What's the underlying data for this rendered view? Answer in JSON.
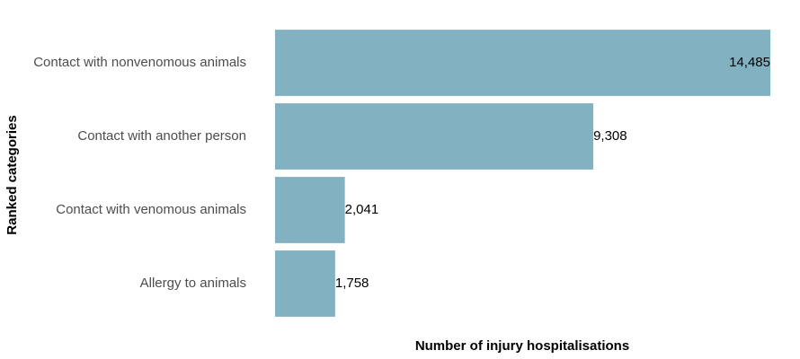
{
  "chart_data": {
    "type": "hbar",
    "x_label": "Number of injury hospitalisations",
    "y_label": "Ranked categories",
    "categories": [
      "Contact with nonvenomous animals",
      "Contact with another person",
      "Contact with venomous animals",
      "Allergy to animals"
    ],
    "values": [
      14485,
      9308,
      2041,
      1758
    ],
    "value_labels": [
      "14,485",
      "9,308",
      "2,041",
      "1,758"
    ],
    "color": "#82b2c2",
    "xlim": [
      0,
      14485
    ]
  }
}
